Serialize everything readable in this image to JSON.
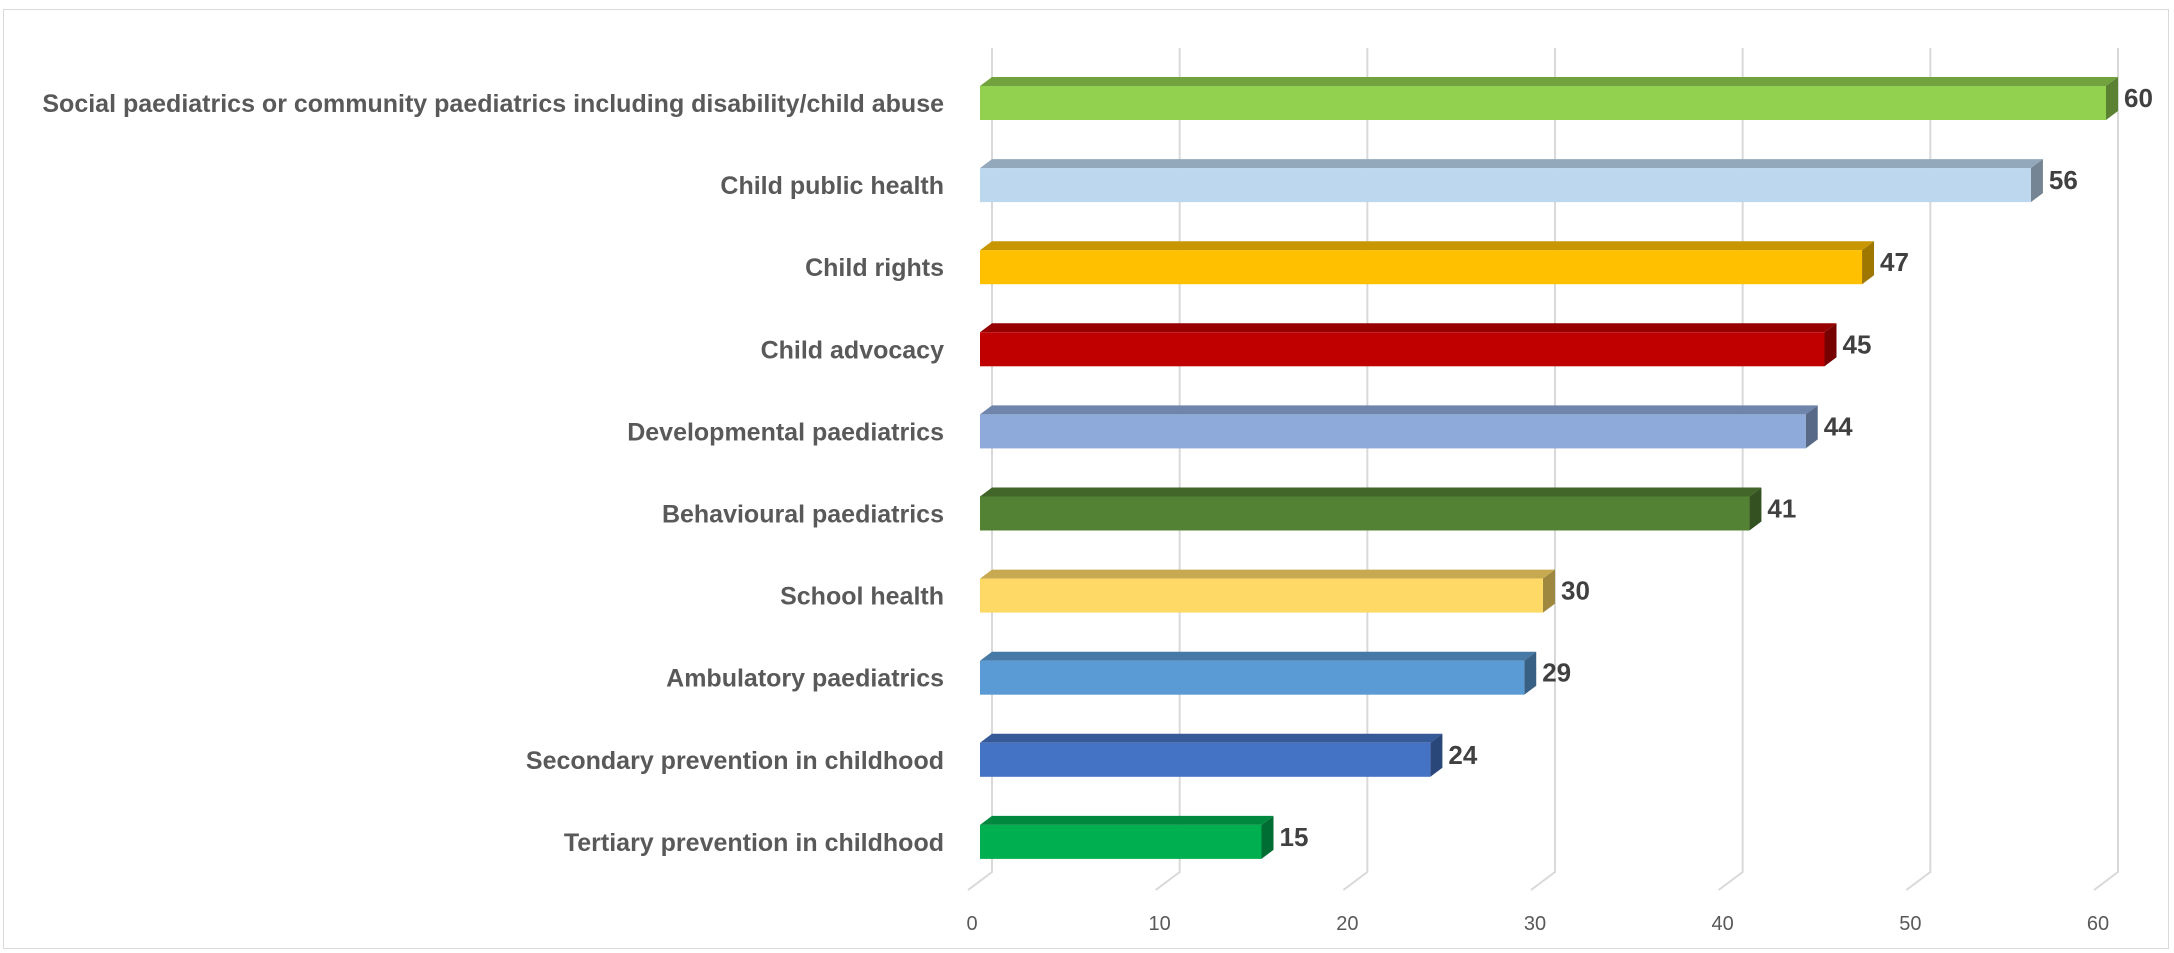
{
  "chart_data": {
    "type": "bar",
    "orientation": "horizontal",
    "title": "",
    "xlabel": "",
    "ylabel": "",
    "xlim": [
      0,
      60
    ],
    "ticks": [
      "0",
      "10",
      "20",
      "30",
      "40",
      "50",
      "60"
    ],
    "tick_values": [
      0,
      10,
      20,
      30,
      40,
      50,
      60
    ],
    "grid": true,
    "legend": "none",
    "categories": [
      "Social paediatrics or community paediatrics including disability/child abuse",
      "Child public health",
      "Child rights",
      "Child advocacy",
      "Developmental paediatrics",
      "Behavioural paediatrics",
      "School health",
      "Ambulatory paediatrics",
      "Secondary prevention in childhood",
      "Tertiary prevention in childhood"
    ],
    "values": [
      60,
      56,
      47,
      45,
      44,
      41,
      30,
      29,
      24,
      15
    ],
    "value_labels": [
      "60",
      "56",
      "47",
      "45",
      "44",
      "41",
      "30",
      "29",
      "24",
      "15"
    ],
    "colors": [
      "#92d050",
      "#bdd7ee",
      "#ffc000",
      "#c00000",
      "#8eaadb",
      "#548235",
      "#ffd966",
      "#5b9bd5",
      "#4472c4",
      "#00b050"
    ]
  }
}
